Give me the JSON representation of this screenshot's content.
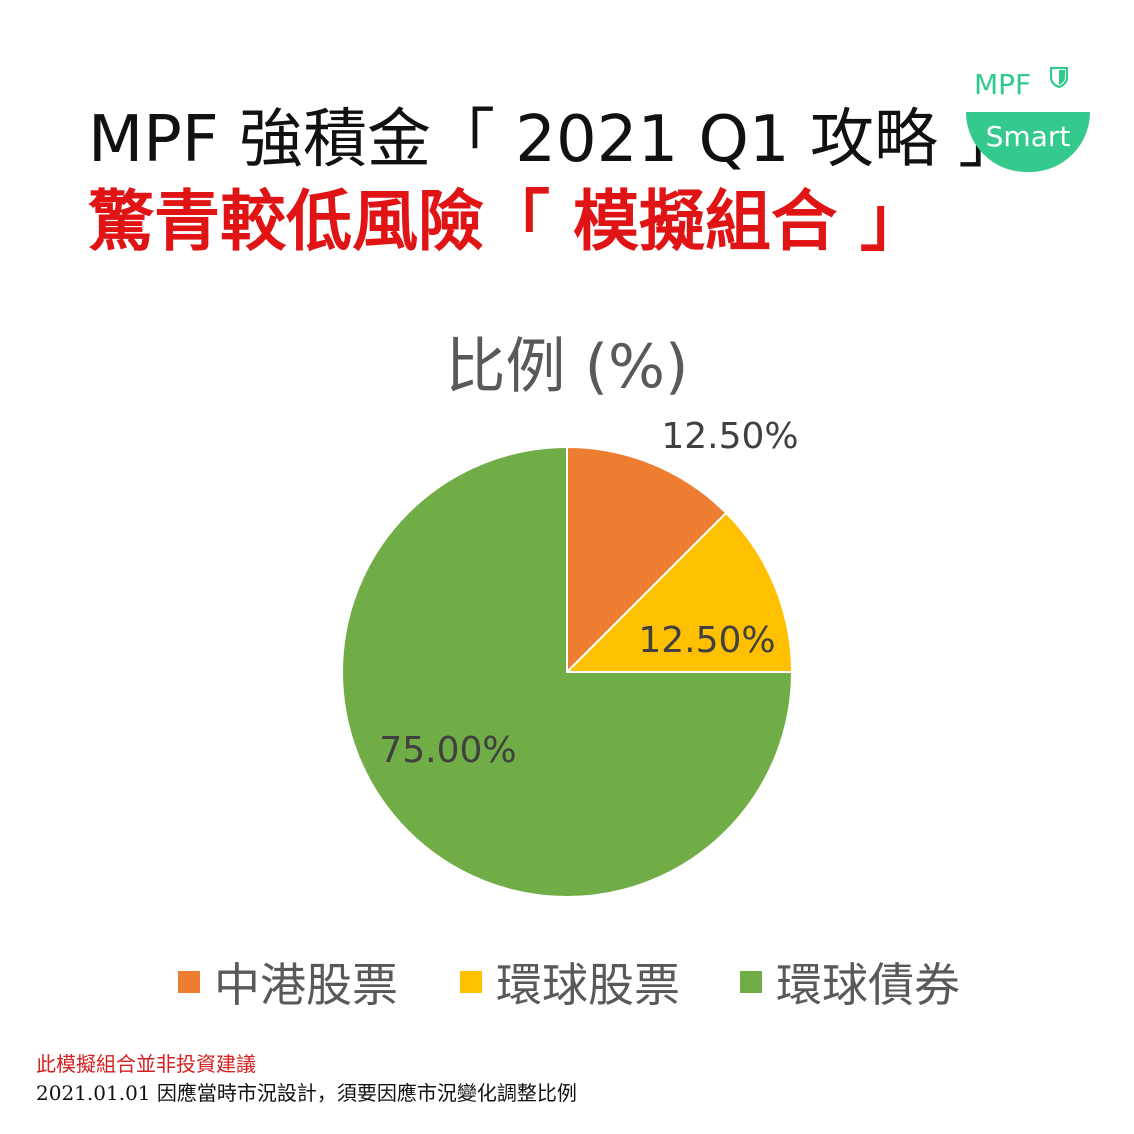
{
  "header": {
    "title_line1": "MPF 強積金「 2021 Q1 攻略 」",
    "title_line2": "驚青較低風險「 模擬組合 」"
  },
  "logo": {
    "top_text": "MPF",
    "bottom_text": "Smart",
    "icon": "shield-icon",
    "color": "#34c98d"
  },
  "chart_data": {
    "type": "pie",
    "title": "比例 (%)",
    "categories": [
      "中港股票",
      "環球股票",
      "環球債券"
    ],
    "values": [
      12.5,
      12.5,
      75.0
    ],
    "data_labels": [
      "12.50%",
      "12.50%",
      "75.00%"
    ],
    "colors": [
      "#ed7d31",
      "#ffc000",
      "#70ad47"
    ],
    "start_angle_deg": 0,
    "direction": "clockwise",
    "legend_position": "bottom"
  },
  "footer": {
    "disclaimer": "此模擬組合並非投資建議",
    "note": "2021.01.01 因應當時市況設計，須要因應市況變化調整比例"
  }
}
